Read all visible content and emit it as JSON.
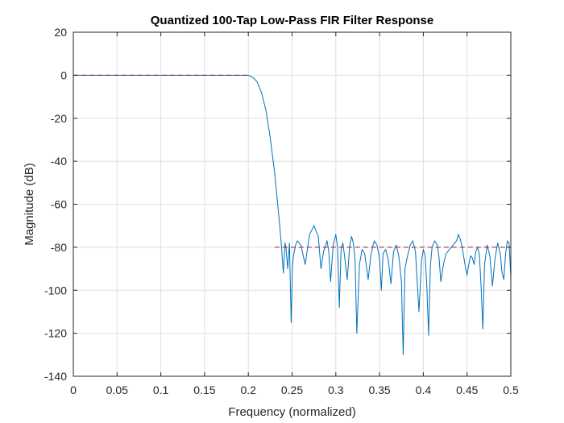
{
  "chart_data": {
    "type": "line",
    "title": "Quantized 100-Tap Low-Pass FIR Filter Response",
    "xlabel": "Frequency (normalized)",
    "ylabel": "Magnitude (dB)",
    "xlim": [
      0,
      0.5
    ],
    "ylim": [
      -140,
      20
    ],
    "xticks": [
      0,
      0.05,
      0.1,
      0.15,
      0.2,
      0.25,
      0.3,
      0.35,
      0.4,
      0.45,
      0.5
    ],
    "xtick_labels": [
      "0",
      "0.05",
      "0.1",
      "0.15",
      "0.2",
      "0.25",
      "0.3",
      "0.35",
      "0.4",
      "0.45",
      "0.5"
    ],
    "yticks": [
      -140,
      -120,
      -100,
      -80,
      -60,
      -40,
      -20,
      0,
      20
    ],
    "ytick_labels": [
      "-140",
      "-120",
      "-100",
      "-80",
      "-60",
      "-40",
      "-20",
      "0",
      "20"
    ],
    "grid": true,
    "series": [
      {
        "color": "#0072bd",
        "style": "solid",
        "x": [
          0,
          0.05,
          0.1,
          0.15,
          0.19,
          0.2,
          0.205,
          0.21,
          0.215,
          0.22,
          0.225,
          0.23,
          0.235,
          0.238,
          0.24,
          0.242,
          0.243,
          0.245,
          0.247,
          0.249,
          0.2505,
          0.252,
          0.254,
          0.256,
          0.26,
          0.265,
          0.27,
          0.275,
          0.28,
          0.283,
          0.286,
          0.29,
          0.292,
          0.294,
          0.297,
          0.3,
          0.302,
          0.304,
          0.306,
          0.308,
          0.31,
          0.313,
          0.316,
          0.318,
          0.32,
          0.322,
          0.324,
          0.327,
          0.33,
          0.333,
          0.337,
          0.34,
          0.342,
          0.344,
          0.347,
          0.35,
          0.352,
          0.354,
          0.357,
          0.36,
          0.363,
          0.366,
          0.369,
          0.372,
          0.375,
          0.377,
          0.379,
          0.382,
          0.385,
          0.388,
          0.391,
          0.393,
          0.395,
          0.398,
          0.4,
          0.402,
          0.404,
          0.406,
          0.408,
          0.41,
          0.413,
          0.416,
          0.418,
          0.42,
          0.423,
          0.426,
          0.43,
          0.434,
          0.438,
          0.44,
          0.442,
          0.444,
          0.446,
          0.448,
          0.45,
          0.452,
          0.454,
          0.456,
          0.458,
          0.46,
          0.462,
          0.464,
          0.466,
          0.468,
          0.47,
          0.473,
          0.476,
          0.479,
          0.482,
          0.485,
          0.488,
          0.49,
          0.492,
          0.494,
          0.496,
          0.498,
          0.5
        ],
        "y": [
          0,
          0,
          0,
          0,
          0,
          0,
          -1,
          -3,
          -8,
          -16,
          -29,
          -45,
          -66,
          -80,
          -92,
          -78,
          -80,
          -90,
          -78,
          -115,
          -88,
          -83,
          -79,
          -77,
          -79,
          -88,
          -74,
          -70,
          -75,
          -90,
          -82,
          -77,
          -82,
          -96,
          -79,
          -74,
          -80,
          -108,
          -81,
          -78,
          -84,
          -95,
          -79,
          -75,
          -78,
          -86,
          -120,
          -88,
          -81,
          -83,
          -95,
          -84,
          -80,
          -77,
          -79,
          -85,
          -100,
          -83,
          -81,
          -86,
          -97,
          -82,
          -79,
          -84,
          -96,
          -130,
          -90,
          -84,
          -79,
          -77,
          -82,
          -96,
          -110,
          -86,
          -81,
          -84,
          -98,
          -121,
          -89,
          -80,
          -77,
          -79,
          -85,
          -96,
          -88,
          -83,
          -81,
          -79,
          -77,
          -74,
          -76,
          -79,
          -84,
          -89,
          -93,
          -88,
          -84,
          -85,
          -88,
          -82,
          -80,
          -83,
          -98,
          -118,
          -88,
          -79,
          -84,
          -98,
          -85,
          -78,
          -83,
          -92,
          -95,
          -83,
          -77,
          -78,
          -94
        ]
      },
      {
        "color": "#a2142f",
        "style": "dashed",
        "x": [
          0,
          0.2
        ],
        "y": [
          0,
          0
        ]
      },
      {
        "color": "#a2142f",
        "style": "dashed",
        "x": [
          0.23,
          0.5
        ],
        "y": [
          -80,
          -80
        ]
      }
    ]
  }
}
